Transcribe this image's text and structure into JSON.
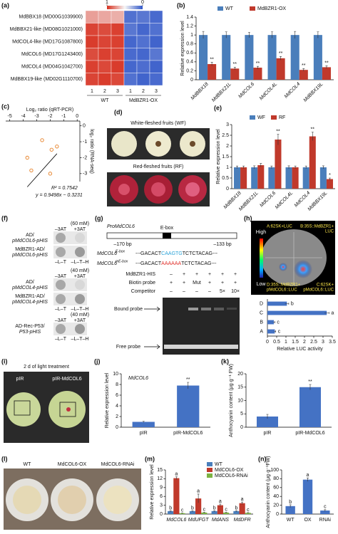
{
  "chart_data": [
    {
      "type": "heatmap",
      "label": "(a)",
      "rows": [
        "MdBBX18 (MD00G1039900)",
        "MdBBX21-like (MD08G1021000)",
        "MdCOL4-like (MD17G1087800)",
        "MdCOL6 (MD17G1243400)",
        "MdCOL4 (MD04G1042700)",
        "MdBBX19-like (MD02G1110700)"
      ],
      "columns": [
        "1",
        "2",
        "3",
        "1",
        "2",
        "3"
      ],
      "groups": [
        "WT",
        "MdBZR1-OX"
      ],
      "values": [
        [
          0.72,
          0.7,
          0.68,
          0.08,
          0.1,
          0.06
        ],
        [
          0.95,
          0.93,
          0.96,
          0.1,
          0.05,
          0.08
        ],
        [
          0.97,
          0.95,
          0.96,
          0.05,
          0.08,
          0.04
        ],
        [
          0.93,
          0.96,
          0.95,
          0.06,
          0.05,
          0.1
        ],
        [
          0.96,
          0.94,
          0.97,
          0.05,
          0.07,
          0.04
        ],
        [
          0.95,
          0.97,
          0.94,
          0.08,
          0.04,
          0.06
        ]
      ],
      "clim": [
        0,
        1
      ],
      "colorbar_ticks": [
        1,
        0
      ]
    },
    {
      "type": "bar",
      "label": "(b)",
      "ylabel": "Relative expression level",
      "categories": [
        "MdBBX18",
        "MdBBX21L",
        "MdCOL6",
        "MdCOL4L",
        "MdCOL4",
        "MdBBX19L"
      ],
      "series": [
        {
          "name": "WT",
          "color": "#4a7ebb",
          "values": [
            1,
            1,
            1,
            1,
            1,
            1
          ],
          "errors": [
            0.08,
            0.07,
            0.06,
            0.07,
            0.08,
            0.07
          ]
        },
        {
          "name": "MdBZR1-OX",
          "color": "#c0392b",
          "values": [
            0.35,
            0.25,
            0.27,
            0.48,
            0.22,
            0.28
          ],
          "errors": [
            0.04,
            0.03,
            0.03,
            0.04,
            0.03,
            0.03
          ],
          "significance": [
            "**",
            "**",
            "**",
            "**",
            "**",
            "**"
          ]
        }
      ],
      "ylim": [
        0,
        1.4
      ],
      "yticks": [
        0,
        0.2,
        0.4,
        0.6,
        0.8,
        1,
        1.2,
        1.4
      ]
    },
    {
      "type": "scatter",
      "label": "(c)",
      "xlabel": "Log₂ ratio (qRT-PCR)",
      "ylabel": "log₂ ratio (RNA-seq)",
      "x": [
        -3.7,
        -3.4,
        -2.6,
        -2.0,
        -1.9,
        -1.5
      ],
      "y": [
        -2.0,
        -2.8,
        -0.9,
        -3.0,
        -1.5,
        -1.3
      ],
      "color": "#e67e22",
      "xlim": [
        -5.3,
        0.2
      ],
      "xticks": [
        -5,
        -4,
        -3,
        -2,
        -1,
        0
      ],
      "ylim": [
        -3.5,
        0.3
      ],
      "yticks": [
        0,
        -1,
        -2,
        -3
      ],
      "fit": {
        "slope": 0.9498,
        "intercept": -0.3231
      },
      "r2_label": "R² = 0.7542",
      "fit_label": "y = 0.9498x − 0.3231"
    },
    {
      "type": "bar",
      "label": "(e)",
      "ylabel": "Relative expression level",
      "categories": [
        "MdBBX18",
        "MdBBX21L",
        "MdCOL6",
        "MdCOL4L",
        "MdCOL4",
        "MdBBX19L"
      ],
      "series": [
        {
          "name": "WF",
          "color": "#4a7ebb",
          "values": [
            1,
            1,
            1,
            1,
            1,
            1
          ],
          "errors": [
            0.06,
            0.07,
            0.06,
            0.07,
            0.06,
            0.07
          ]
        },
        {
          "name": "RF",
          "color": "#c0392b",
          "values": [
            1.0,
            1.1,
            2.3,
            1.0,
            2.45,
            0.45
          ],
          "errors": [
            0.06,
            0.08,
            0.25,
            0.06,
            0.2,
            0.05
          ],
          "significance": [
            null,
            null,
            "**",
            null,
            "**",
            "*"
          ]
        }
      ],
      "ylim": [
        0,
        3
      ],
      "yticks": [
        0,
        0.5,
        1,
        1.5,
        2,
        2.5,
        3
      ]
    },
    {
      "type": "hbar",
      "xlabel": "Relative LUC activity",
      "categories": [
        "A",
        "B",
        "C",
        "D"
      ],
      "color": "#4472c4",
      "values": [
        0.4,
        0.35,
        3.2,
        1.05
      ],
      "errors": [
        0.05,
        0.05,
        0.12,
        0.1
      ],
      "significance": [
        "c",
        "c",
        "a",
        "b"
      ],
      "xlim": [
        0,
        3.5
      ],
      "xticks": [
        0,
        0.5,
        1,
        1.5,
        2,
        2.5,
        3,
        3.5
      ]
    },
    {
      "type": "bar",
      "label": "(j)",
      "ylabel": "Relative expression level",
      "annotation": "MdCOL6",
      "categories": [
        "pIR",
        "pIR-MdCOL6"
      ],
      "series": [
        {
          "color": "#4472c4",
          "values": [
            1,
            7.8
          ],
          "errors": [
            0.1,
            0.6
          ],
          "significance": [
            null,
            "**"
          ]
        }
      ],
      "ylim": [
        0,
        10
      ],
      "yticks": [
        0,
        2,
        4,
        6,
        8,
        10
      ]
    },
    {
      "type": "bar",
      "label": "(k)",
      "ylabel": "Anthocyanin content (μg·g⁻¹ FW)",
      "categories": [
        "pIR",
        "pIR-MdCOL6"
      ],
      "series": [
        {
          "color": "#4472c4",
          "values": [
            4,
            15
          ],
          "errors": [
            0.8,
            1
          ],
          "significance": [
            null,
            "**"
          ]
        }
      ],
      "ylim": [
        0,
        20
      ],
      "yticks": [
        0,
        5,
        10,
        15,
        20
      ]
    },
    {
      "type": "bar",
      "label": "(m)",
      "ylabel": "Relative expression level",
      "categories": [
        "MdCOL6",
        "MdUFGT",
        "MdANS",
        "MdDFR"
      ],
      "series": [
        {
          "name": "WT",
          "color": "#4a7ebb",
          "values": [
            1,
            1,
            1,
            1
          ],
          "errors": [
            0.1,
            0.1,
            0.1,
            0.1
          ],
          "significance": [
            "b",
            "b",
            "b",
            "b"
          ]
        },
        {
          "name": "MdCOL6-OX",
          "color": "#c0392b",
          "values": [
            12.2,
            5.3,
            3.0,
            3.7
          ],
          "errors": [
            0.5,
            1.5,
            0.4,
            0.4
          ],
          "significance": [
            "a",
            "a",
            "a",
            "a"
          ]
        },
        {
          "name": "MdCOL6-RNAi",
          "color": "#7cb342",
          "values": [
            0.3,
            0.5,
            0.5,
            0.4
          ],
          "errors": [
            0.05,
            0.1,
            0.1,
            0.1
          ],
          "significance": [
            "c",
            "c",
            "c",
            "c"
          ]
        }
      ],
      "ylim": [
        0,
        15
      ],
      "yticks": [
        0,
        3,
        6,
        9,
        12,
        15
      ]
    },
    {
      "type": "bar",
      "label": "(n)",
      "ylabel": "Anthocyanin content (μg·g⁻¹FW)",
      "categories": [
        "WT",
        "OX",
        "RNAi"
      ],
      "series": [
        {
          "color": "#4472c4",
          "values": [
            18,
            78,
            8
          ],
          "errors": [
            3,
            4,
            2
          ],
          "significance": [
            "b",
            "a",
            "c"
          ]
        }
      ],
      "ylim": [
        0,
        100
      ],
      "yticks": [
        0,
        20,
        40,
        60,
        80,
        100
      ]
    }
  ],
  "panel_d": {
    "label": "(d)",
    "white_title": "White-fleshed fruits (WF)",
    "red_title": "Red-fleshed fruits (RF)"
  },
  "panel_f": {
    "label": "(f)",
    "minus": "–3AT",
    "plus": "+3AT",
    "media_left": "–L–T",
    "media_right": "–L–T–H",
    "blocks": [
      {
        "conc": "(60 mM)",
        "rows": [
          [
            "AD/",
            "pMdCOL6-pHIS"
          ],
          [
            "MdBZR1-AD/",
            "pMdCOL6-pHIS"
          ]
        ]
      },
      {
        "conc": "(40 mM)",
        "rows": [
          [
            "AD/",
            "pMdCOL4-pHIS"
          ],
          [
            "MdBZR1-AD/",
            "pMdCOL4-pHIS"
          ]
        ]
      },
      {
        "conc": "(40 mM)",
        "rows": [
          [
            "AD-Rec-P53/",
            "P53-pHIS"
          ]
        ]
      }
    ]
  },
  "panel_g": {
    "label": "(g)",
    "promoter": "ProMdCOL6",
    "ebox": "E-box",
    "left_pos": "–170 bp",
    "right_pos": "–133 bp",
    "wt_name": "MdCOL6",
    "wt_sup": "E-box",
    "wt_seq": [
      "---GACACT",
      "CAAGTG",
      "TCTCTACAG---"
    ],
    "mut_name": "MdCOL6",
    "mut_sup": "mE-box",
    "mut_seq": [
      "---GACACT",
      "AAAAAA",
      "TCTCTACAG---"
    ],
    "rows": [
      {
        "name": "MdBZR1-HIS",
        "cells": [
          "–",
          "+",
          "+",
          "+",
          "+",
          "+"
        ]
      },
      {
        "name": "Biotin probe",
        "cells": [
          "+",
          "+",
          "Mut",
          "+",
          "+",
          "+"
        ]
      },
      {
        "name": "Competitor",
        "cells": [
          "–",
          "–",
          "–",
          "–",
          "5×",
          "10×"
        ]
      }
    ],
    "bound": "Bound probe",
    "free": "Free probe"
  },
  "panel_h": {
    "label": "(h)",
    "high": "High",
    "low": "Low",
    "a": [
      "A:62SK+LUC"
    ],
    "b": [
      "B:35S::MdBZR1+",
      "LUC"
    ],
    "d": [
      "D:35S::MdBZR1+",
      "pMdCOL6::LUC"
    ],
    "c": [
      "C:62SK+",
      "pMdCOL6::LUC"
    ]
  },
  "panel_i": {
    "label": "(i)",
    "title": "2 d of light treatment",
    "left": "pIR",
    "right": "pIR-MdCOL6"
  },
  "panel_l": {
    "label": "(l)",
    "names": [
      "WT",
      "MdCOL6-OX",
      "MdCOL6-RNAi"
    ]
  }
}
